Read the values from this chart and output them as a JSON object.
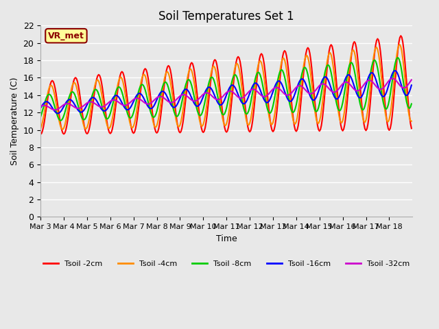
{
  "title": "Soil Temperatures Set 1",
  "xlabel": "Time",
  "ylabel": "Soil Temperature (C)",
  "ylim": [
    0,
    22
  ],
  "yticks": [
    0,
    2,
    4,
    6,
    8,
    10,
    12,
    14,
    16,
    18,
    20,
    22
  ],
  "x_labels": [
    "Mar 3",
    "Mar 4",
    "Mar 5",
    "Mar 6",
    "Mar 7",
    "Mar 8",
    "Mar 9",
    "Mar 10",
    "Mar 11",
    "Mar 12",
    "Mar 13",
    "Mar 14",
    "Mar 15",
    "Mar 16",
    "Mar 17",
    "Mar 18"
  ],
  "colors": {
    "Tsoil -2cm": "#FF0000",
    "Tsoil -4cm": "#FF8C00",
    "Tsoil -8cm": "#00CC00",
    "Tsoil -16cm": "#0000FF",
    "Tsoil -32cm": "#CC00CC"
  },
  "line_width": 1.5,
  "background_color": "#E8E8E8",
  "grid_color": "#FFFFFF",
  "annotation_text": "VR_met",
  "annotation_bg": "#FFFF99",
  "annotation_border": "#8B0000"
}
